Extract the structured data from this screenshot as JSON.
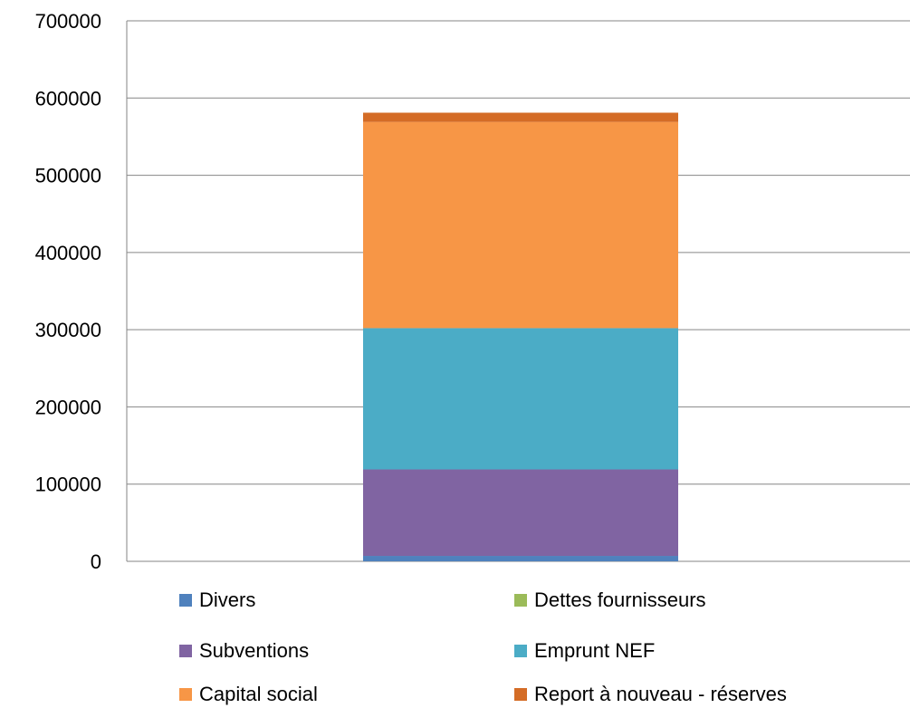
{
  "chart_data": {
    "type": "bar",
    "stacked": true,
    "categories": [
      ""
    ],
    "y_ticks": [
      "0",
      "100000",
      "200000",
      "300000",
      "400000",
      "500000",
      "600000",
      "700000"
    ],
    "ylim": [
      0,
      700000
    ],
    "grid": true,
    "legend_placement": "bottom",
    "series": [
      {
        "name": "Divers",
        "values": [
          7000
        ],
        "color": "#4f81bd"
      },
      {
        "name": "Dettes fournisseurs",
        "values": [
          0
        ],
        "color": "#9bbb59"
      },
      {
        "name": "Subventions",
        "values": [
          112000
        ],
        "color": "#8064a2"
      },
      {
        "name": "Emprunt NEF",
        "values": [
          183000
        ],
        "color": "#4bacc6"
      },
      {
        "name": "Capital social",
        "values": [
          267000
        ],
        "color": "#f79646"
      },
      {
        "name": "Report à nouveau - réserves",
        "values": [
          12000
        ],
        "color": "#d46c26"
      }
    ]
  }
}
